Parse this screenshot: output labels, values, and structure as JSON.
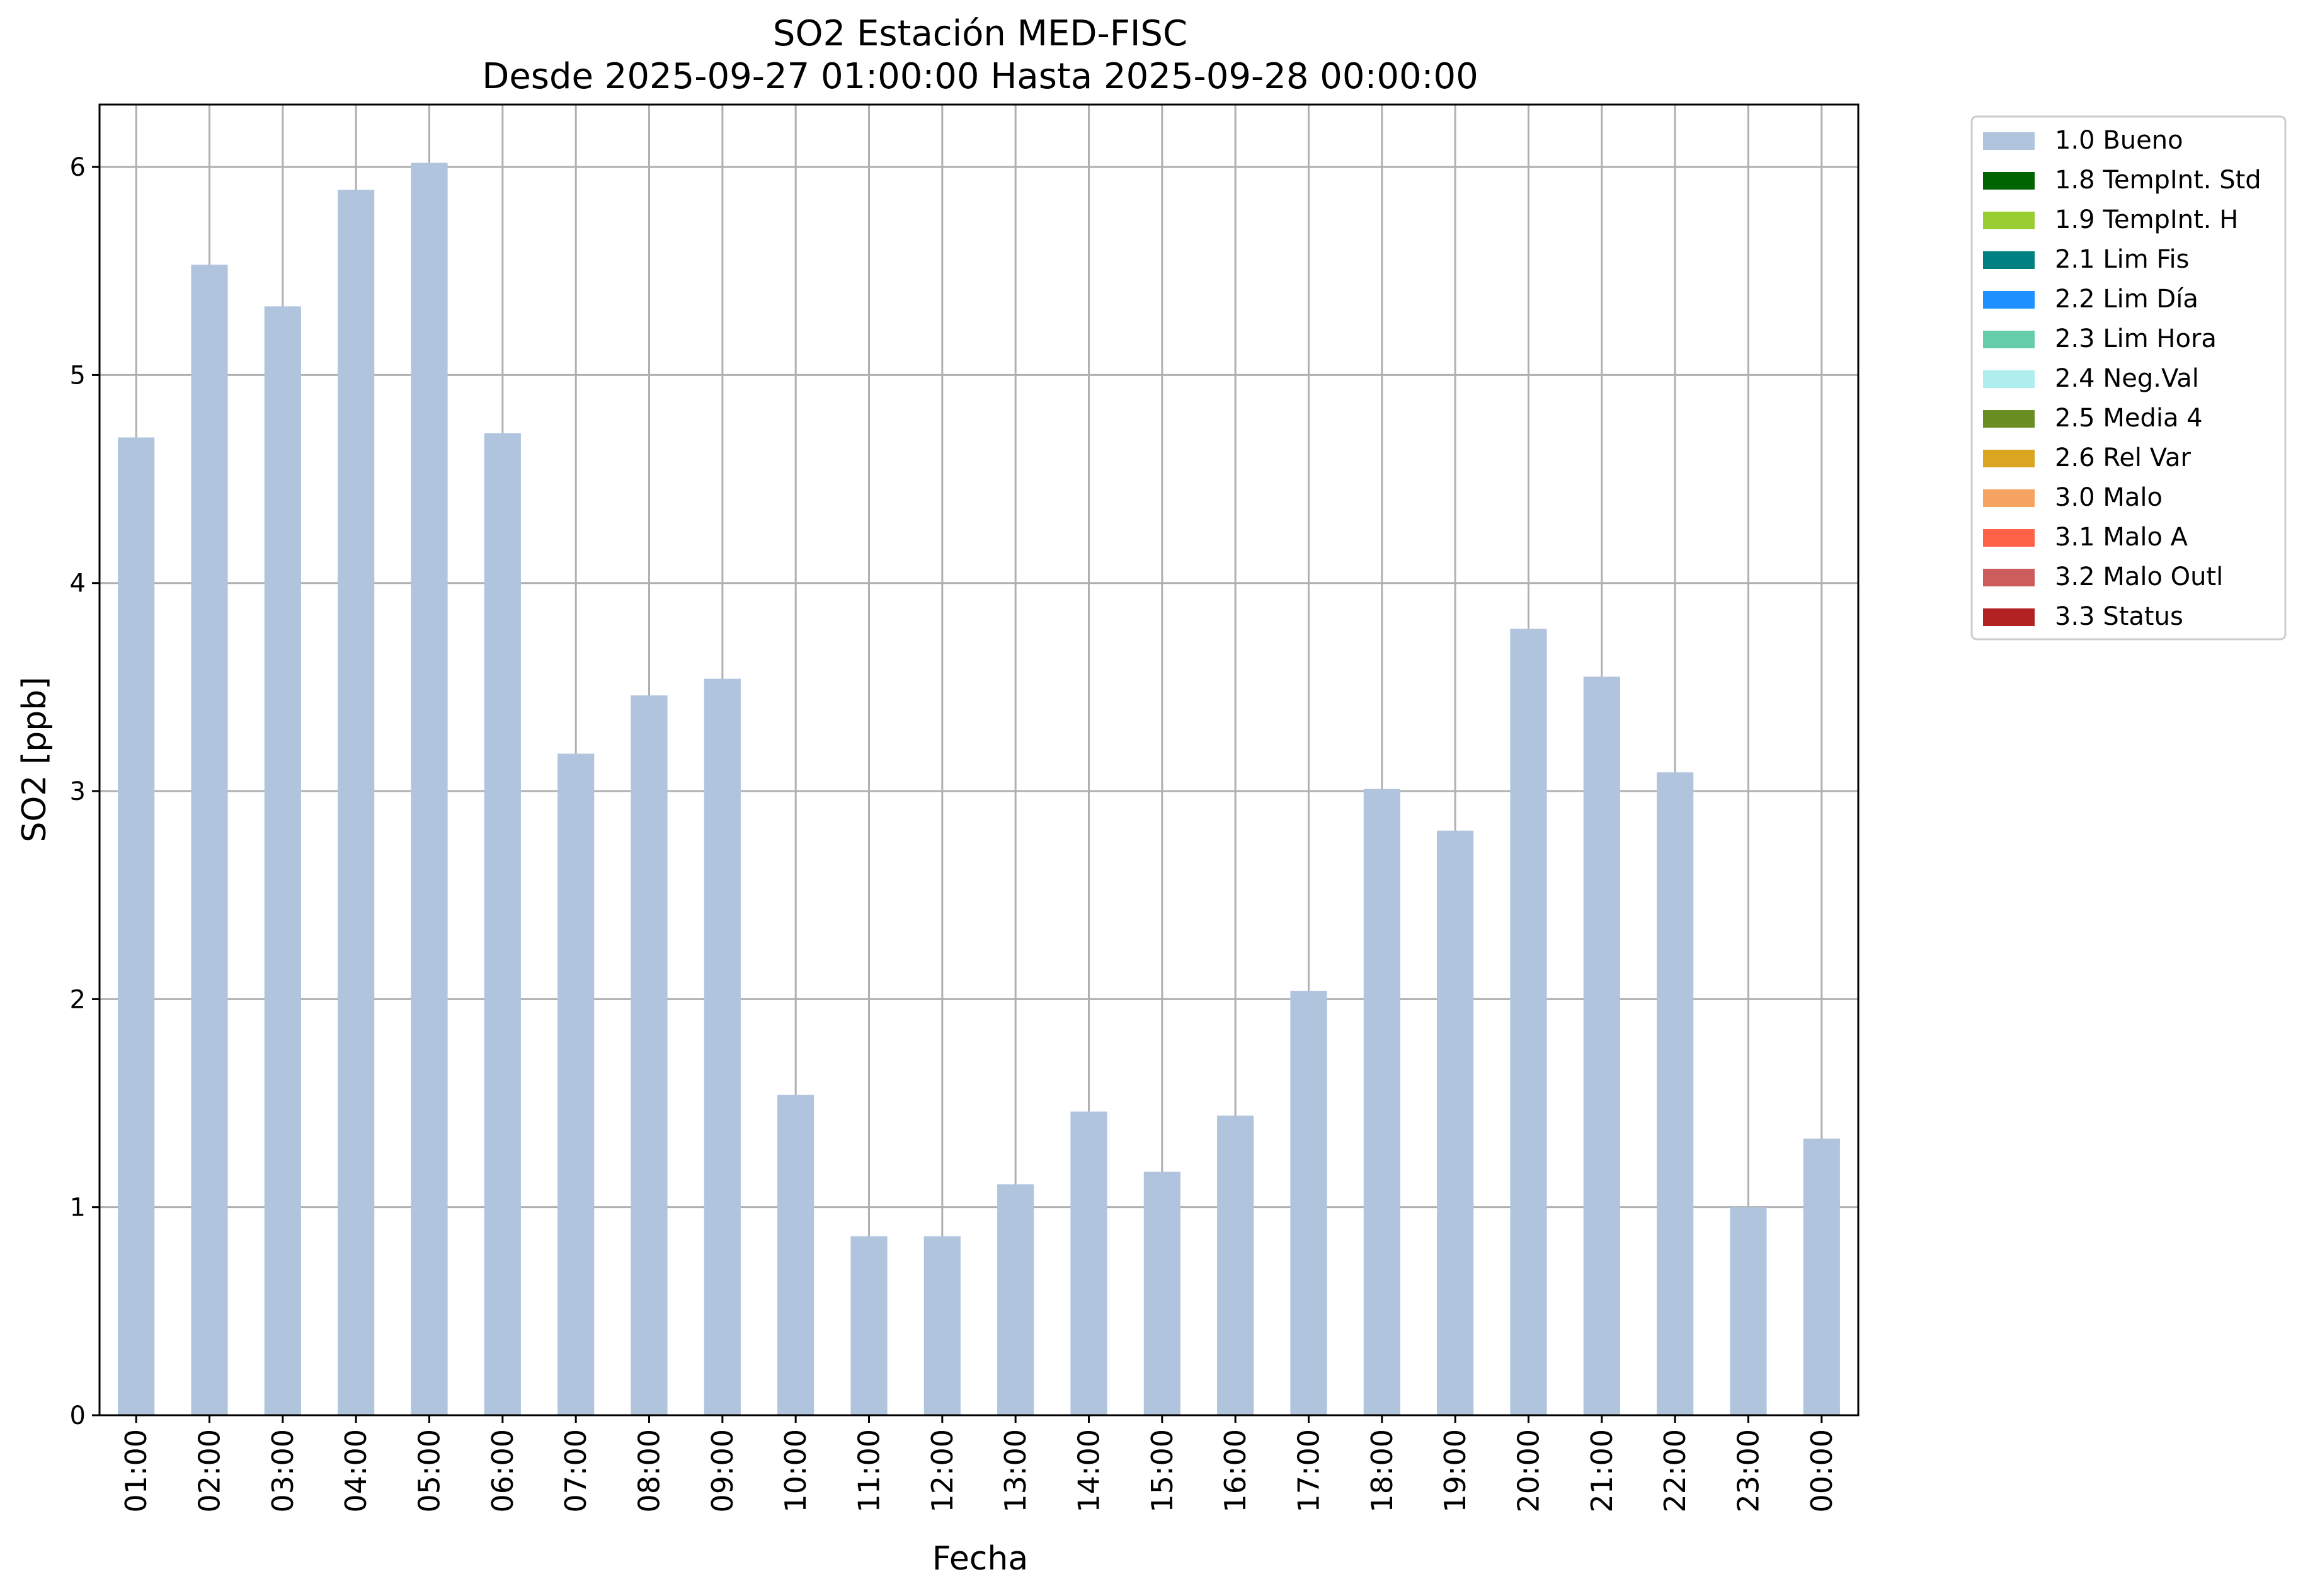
{
  "chart_data": {
    "type": "bar",
    "title_line1": "SO2 Estación MED-FISC",
    "title_line2": "Desde 2025-09-27 01:00:00 Hasta 2025-09-28 00:00:00",
    "xlabel": "Fecha",
    "ylabel": "SO2 [ppb]",
    "ylim": [
      0,
      6.3
    ],
    "yticks": [
      "0",
      "1",
      "2",
      "3",
      "4",
      "5",
      "6"
    ],
    "grid": true,
    "legend_position": "outside-top-right",
    "categories": [
      "01:00",
      "02:00",
      "03:00",
      "04:00",
      "05:00",
      "06:00",
      "07:00",
      "08:00",
      "09:00",
      "10:00",
      "11:00",
      "12:00",
      "13:00",
      "14:00",
      "15:00",
      "16:00",
      "17:00",
      "18:00",
      "19:00",
      "20:00",
      "21:00",
      "22:00",
      "23:00",
      "00:00"
    ],
    "series": [
      {
        "name": "1.0 Bueno",
        "color": "#b0c4de",
        "values": [
          4.7,
          5.53,
          5.33,
          5.89,
          6.02,
          4.72,
          3.18,
          3.46,
          3.54,
          1.54,
          0.86,
          0.86,
          1.11,
          1.46,
          1.17,
          1.44,
          2.04,
          3.01,
          2.81,
          3.78,
          3.55,
          3.09,
          1.0,
          1.33
        ]
      }
    ],
    "legend": [
      {
        "label": "1.0 Bueno",
        "color": "#b0c4de"
      },
      {
        "label": "1.8 TempInt. Std",
        "color": "#006400"
      },
      {
        "label": "1.9 TempInt. H",
        "color": "#9acd32"
      },
      {
        "label": "2.1 Lim Fis",
        "color": "#008080"
      },
      {
        "label": "2.2 Lim Día",
        "color": "#1e90ff"
      },
      {
        "label": "2.3 Lim Hora",
        "color": "#66cdaa"
      },
      {
        "label": "2.4 Neg.Val",
        "color": "#afeeee"
      },
      {
        "label": "2.5 Media 4",
        "color": "#6b8e23"
      },
      {
        "label": "2.6 Rel Var",
        "color": "#daa520"
      },
      {
        "label": "3.0 Malo",
        "color": "#f4a460"
      },
      {
        "label": "3.1 Malo A",
        "color": "#ff6347"
      },
      {
        "label": "3.2 Malo Outl",
        "color": "#cd5c5c"
      },
      {
        "label": "3.3 Status",
        "color": "#b22222"
      }
    ]
  }
}
